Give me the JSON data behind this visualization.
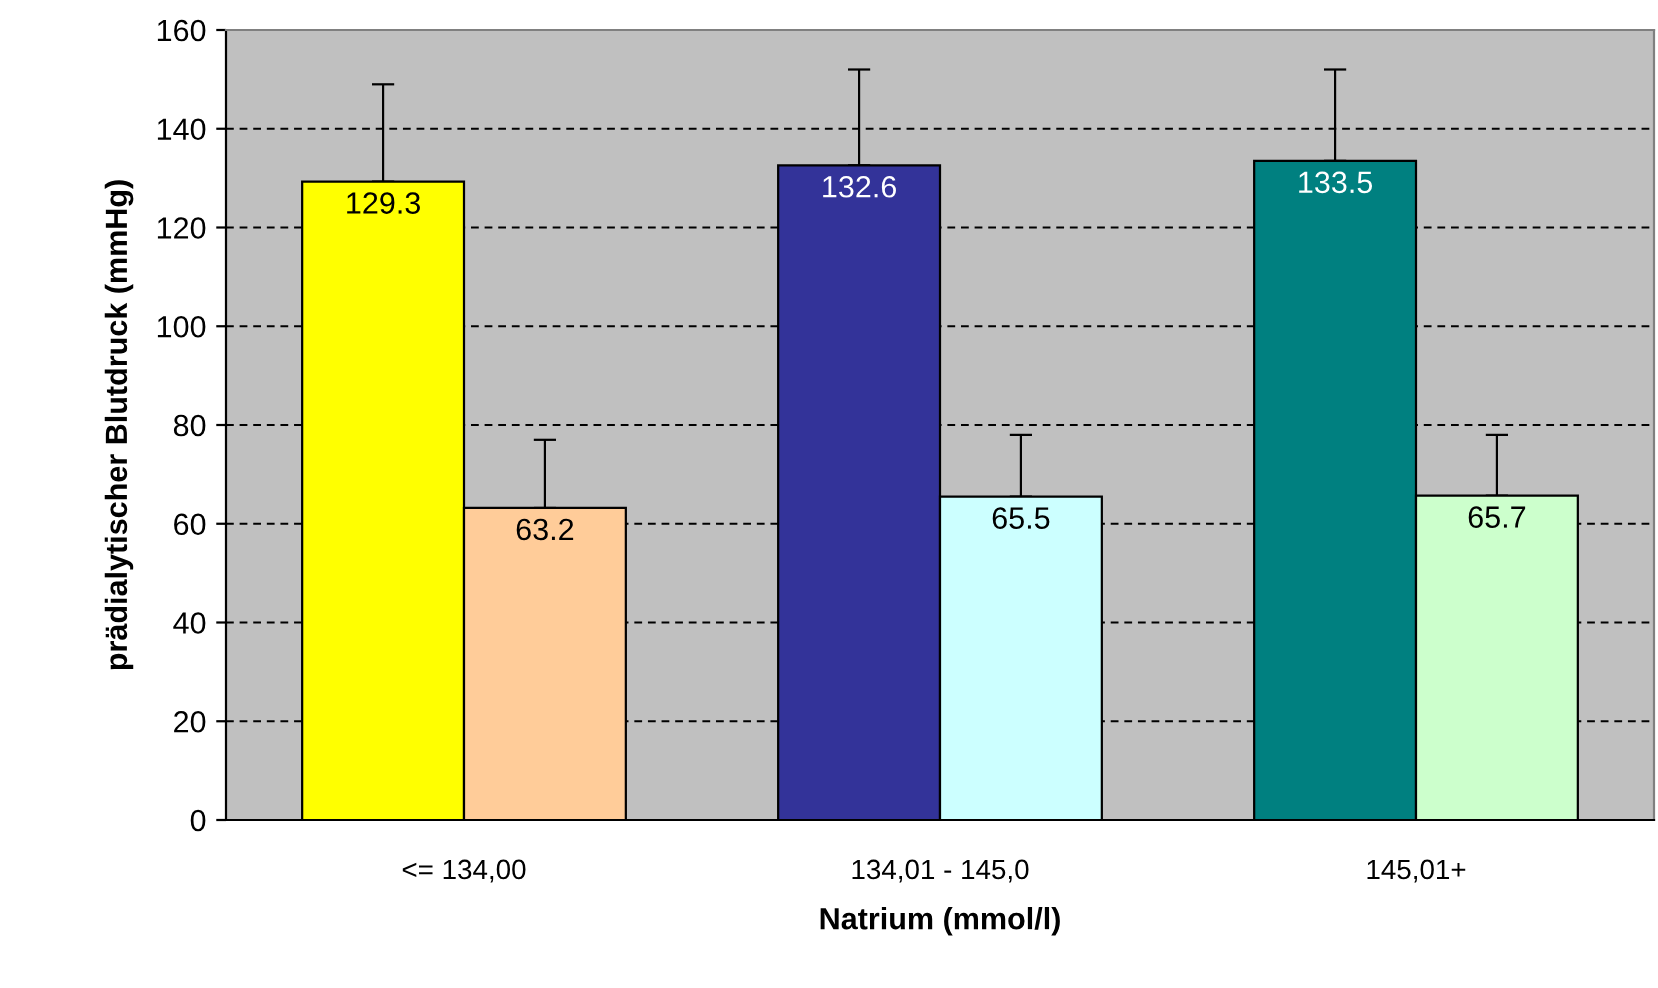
{
  "chart_data": {
    "type": "bar",
    "xlabel": "Natrium (mmol/l)",
    "ylabel": "prädialytischer Blutdruck (mmHg)",
    "categories": [
      "<= 134,00",
      "134,01 - 145,0",
      "145,01+"
    ],
    "series": [
      {
        "colors": [
          "#ffff00",
          "#333399",
          "#008080"
        ],
        "values": [
          129.3,
          132.6,
          133.5
        ],
        "errors": [
          [
            129.3,
            149
          ],
          [
            132.6,
            152
          ],
          [
            133.5,
            152
          ]
        ]
      },
      {
        "colors": [
          "#ffcc99",
          "#ccffff",
          "#ccffcc"
        ],
        "values": [
          63.2,
          65.5,
          65.7
        ],
        "errors": [
          [
            63.2,
            77
          ],
          [
            65.5,
            78
          ],
          [
            65.7,
            78
          ]
        ]
      }
    ],
    "data_labels": true,
    "ylim": [
      0,
      160
    ],
    "yticks": [
      0,
      20,
      40,
      60,
      80,
      100,
      120,
      140,
      160
    ],
    "grid": "y",
    "legend": false
  }
}
